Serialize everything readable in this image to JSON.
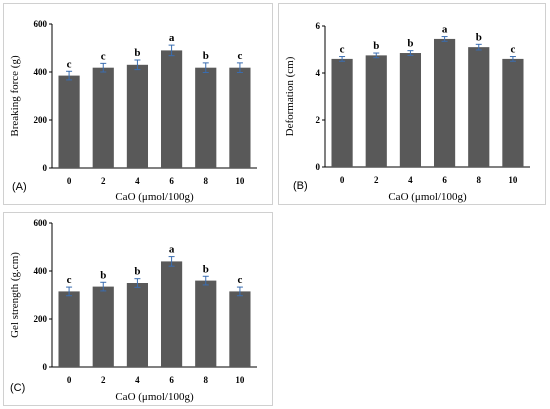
{
  "chart_data": [
    {
      "type": "bar",
      "panel_label": "(A)",
      "categories": [
        "0",
        "2",
        "4",
        "6",
        "8",
        "10"
      ],
      "values": [
        385,
        418,
        430,
        490,
        418,
        418
      ],
      "errors": [
        18,
        18,
        20,
        22,
        20,
        20
      ],
      "significance": [
        "c",
        "c",
        "b",
        "a",
        "b",
        "c"
      ],
      "xlabel": "CaO (μmol/100g)",
      "ylabel": "Breaking force (g)",
      "ylim": [
        0,
        600
      ],
      "yticks": [
        "0",
        "200",
        "400",
        "600"
      ],
      "bar_color": "#595959",
      "error_color": "#3a6db0"
    },
    {
      "type": "bar",
      "panel_label": "(B)",
      "categories": [
        "0",
        "2",
        "4",
        "6",
        "8",
        "10"
      ],
      "values": [
        4.6,
        4.75,
        4.85,
        5.45,
        5.1,
        4.6
      ],
      "errors": [
        0.1,
        0.1,
        0.1,
        0.1,
        0.12,
        0.1
      ],
      "significance": [
        "c",
        "b",
        "b",
        "a",
        "b",
        "c"
      ],
      "xlabel": "CaO (μmol/100g)",
      "ylabel": "Deformation (cm)",
      "ylim": [
        0,
        6
      ],
      "yticks": [
        "0",
        "2",
        "4",
        "6"
      ],
      "bar_color": "#595959",
      "error_color": "#3a6db0"
    },
    {
      "type": "bar",
      "panel_label": "(C)",
      "categories": [
        "0",
        "2",
        "4",
        "6",
        "8",
        "10"
      ],
      "values": [
        315,
        335,
        350,
        440,
        360,
        315
      ],
      "errors": [
        18,
        18,
        18,
        20,
        18,
        18
      ],
      "significance": [
        "c",
        "b",
        "b",
        "a",
        "b",
        "c"
      ],
      "xlabel": "CaO (μmol/100g)",
      "ylabel": "Gel strength (g.cm)",
      "ylim": [
        0,
        600
      ],
      "yticks": [
        "0",
        "200",
        "400",
        "600"
      ],
      "bar_color": "#595959",
      "error_color": "#3a6db0"
    }
  ]
}
